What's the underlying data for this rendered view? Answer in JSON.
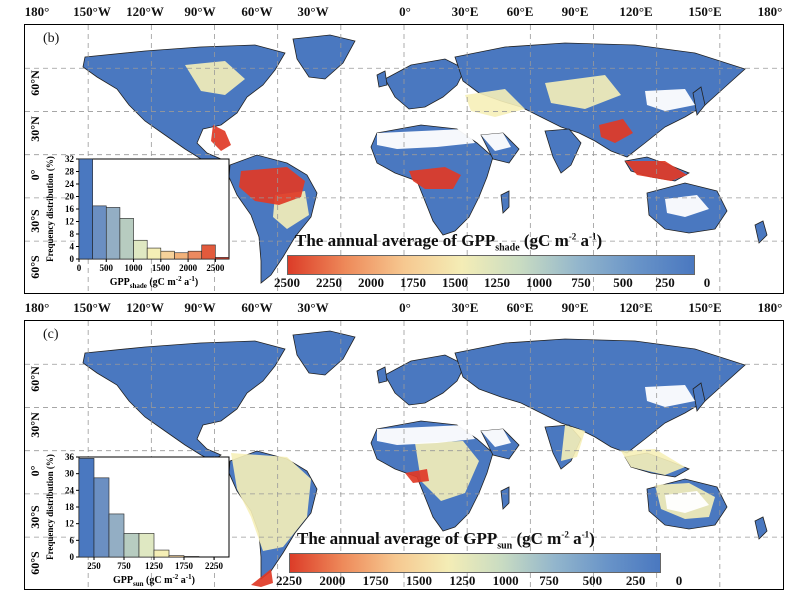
{
  "colors": {
    "ocean": "#ffffff",
    "land_low": "#4a78c0",
    "land_mid": "#9fbcd0",
    "land_pale": "#f6efb8",
    "land_hi": "#e03a26",
    "grid": "#999999"
  },
  "longitude_labels": [
    "180°",
    "150°W",
    "120°W",
    "90°W",
    "60°W",
    "30°W",
    "0°",
    "30°E",
    "60°E",
    "90°E",
    "120°E",
    "150°E",
    "180°"
  ],
  "latitude_labels": [
    "60°N",
    "30°N",
    "0°",
    "30°S",
    "60°S"
  ],
  "panels": [
    {
      "label": "(b)",
      "legend": {
        "title_prefix": "The annual average of GPP",
        "title_subscript": "shade",
        "title_unit_open": " (gC m",
        "title_sup1": "-2",
        "title_mid": " a",
        "title_sup2": "-1",
        "title_close": ")",
        "ticks": [
          "2500",
          "2250",
          "2000",
          "1750",
          "1500",
          "1250",
          "1000",
          "750",
          "500",
          "250",
          "0"
        ]
      },
      "histogram": {
        "y_title": "Frequency distribution (%)",
        "y_ticks": [
          "0",
          "4",
          "8",
          "12",
          "16",
          "20",
          "24",
          "28",
          "32"
        ],
        "x_ticks": [
          "0",
          "500",
          "1000",
          "1500",
          "2000",
          "2500"
        ],
        "x_title_prefix": "GPP",
        "x_title_subscript": "shade",
        "x_title_unit": "(gC m",
        "x_title_sup1": "-2",
        "x_title_mid": "a",
        "x_title_sup2": "-1",
        "x_title_close": ")"
      }
    },
    {
      "label": "(c)",
      "legend": {
        "title_prefix": "The annual average of GPP",
        "title_subscript": "sun",
        "title_unit_open": " (gC m",
        "title_sup1": "-2",
        "title_mid": " a",
        "title_sup2": "-1",
        "title_close": ")",
        "ticks": [
          "2250",
          "2000",
          "1750",
          "1500",
          "1250",
          "1000",
          "750",
          "500",
          "250",
          "0"
        ]
      },
      "histogram": {
        "y_title": "Frequency distribution (%)",
        "y_ticks": [
          "0",
          "6",
          "12",
          "18",
          "24",
          "30",
          "36"
        ],
        "x_ticks": [
          "250",
          "750",
          "1250",
          "1750",
          "2250"
        ],
        "x_title_prefix": "GPP",
        "x_title_subscript": "sun",
        "x_title_unit": "(gC m",
        "x_title_sup1": "-2",
        "x_title_mid": "a",
        "x_title_sup2": "-1",
        "x_title_close": ")"
      }
    }
  ],
  "chart_data": [
    {
      "type": "bar",
      "categories": [
        "0-250",
        "250-500",
        "500-750",
        "750-1000",
        "1000-1250",
        "1250-1500",
        "1500-1750",
        "1750-2000",
        "2000-2250",
        "2250-2500",
        "2500-2750"
      ],
      "values": [
        32,
        17,
        16.5,
        13,
        6,
        3.5,
        2.5,
        2,
        2.5,
        4.5,
        0.5
      ],
      "ylabel": "Frequency distribution (%)",
      "ylim": [
        0,
        32
      ],
      "xlim": [
        0,
        2750
      ]
    },
    {
      "type": "bar",
      "categories": [
        "0-250",
        "250-500",
        "500-750",
        "750-1000",
        "1000-1250",
        "1250-1500",
        "1500-1750",
        "1750-2000"
      ],
      "values": [
        35.5,
        28.5,
        15.5,
        8.5,
        8.5,
        2.5,
        0.5,
        0.2
      ],
      "ylabel": "Frequency distribution (%)",
      "ylim": [
        0,
        36
      ],
      "xlim": [
        0,
        2500
      ]
    }
  ]
}
